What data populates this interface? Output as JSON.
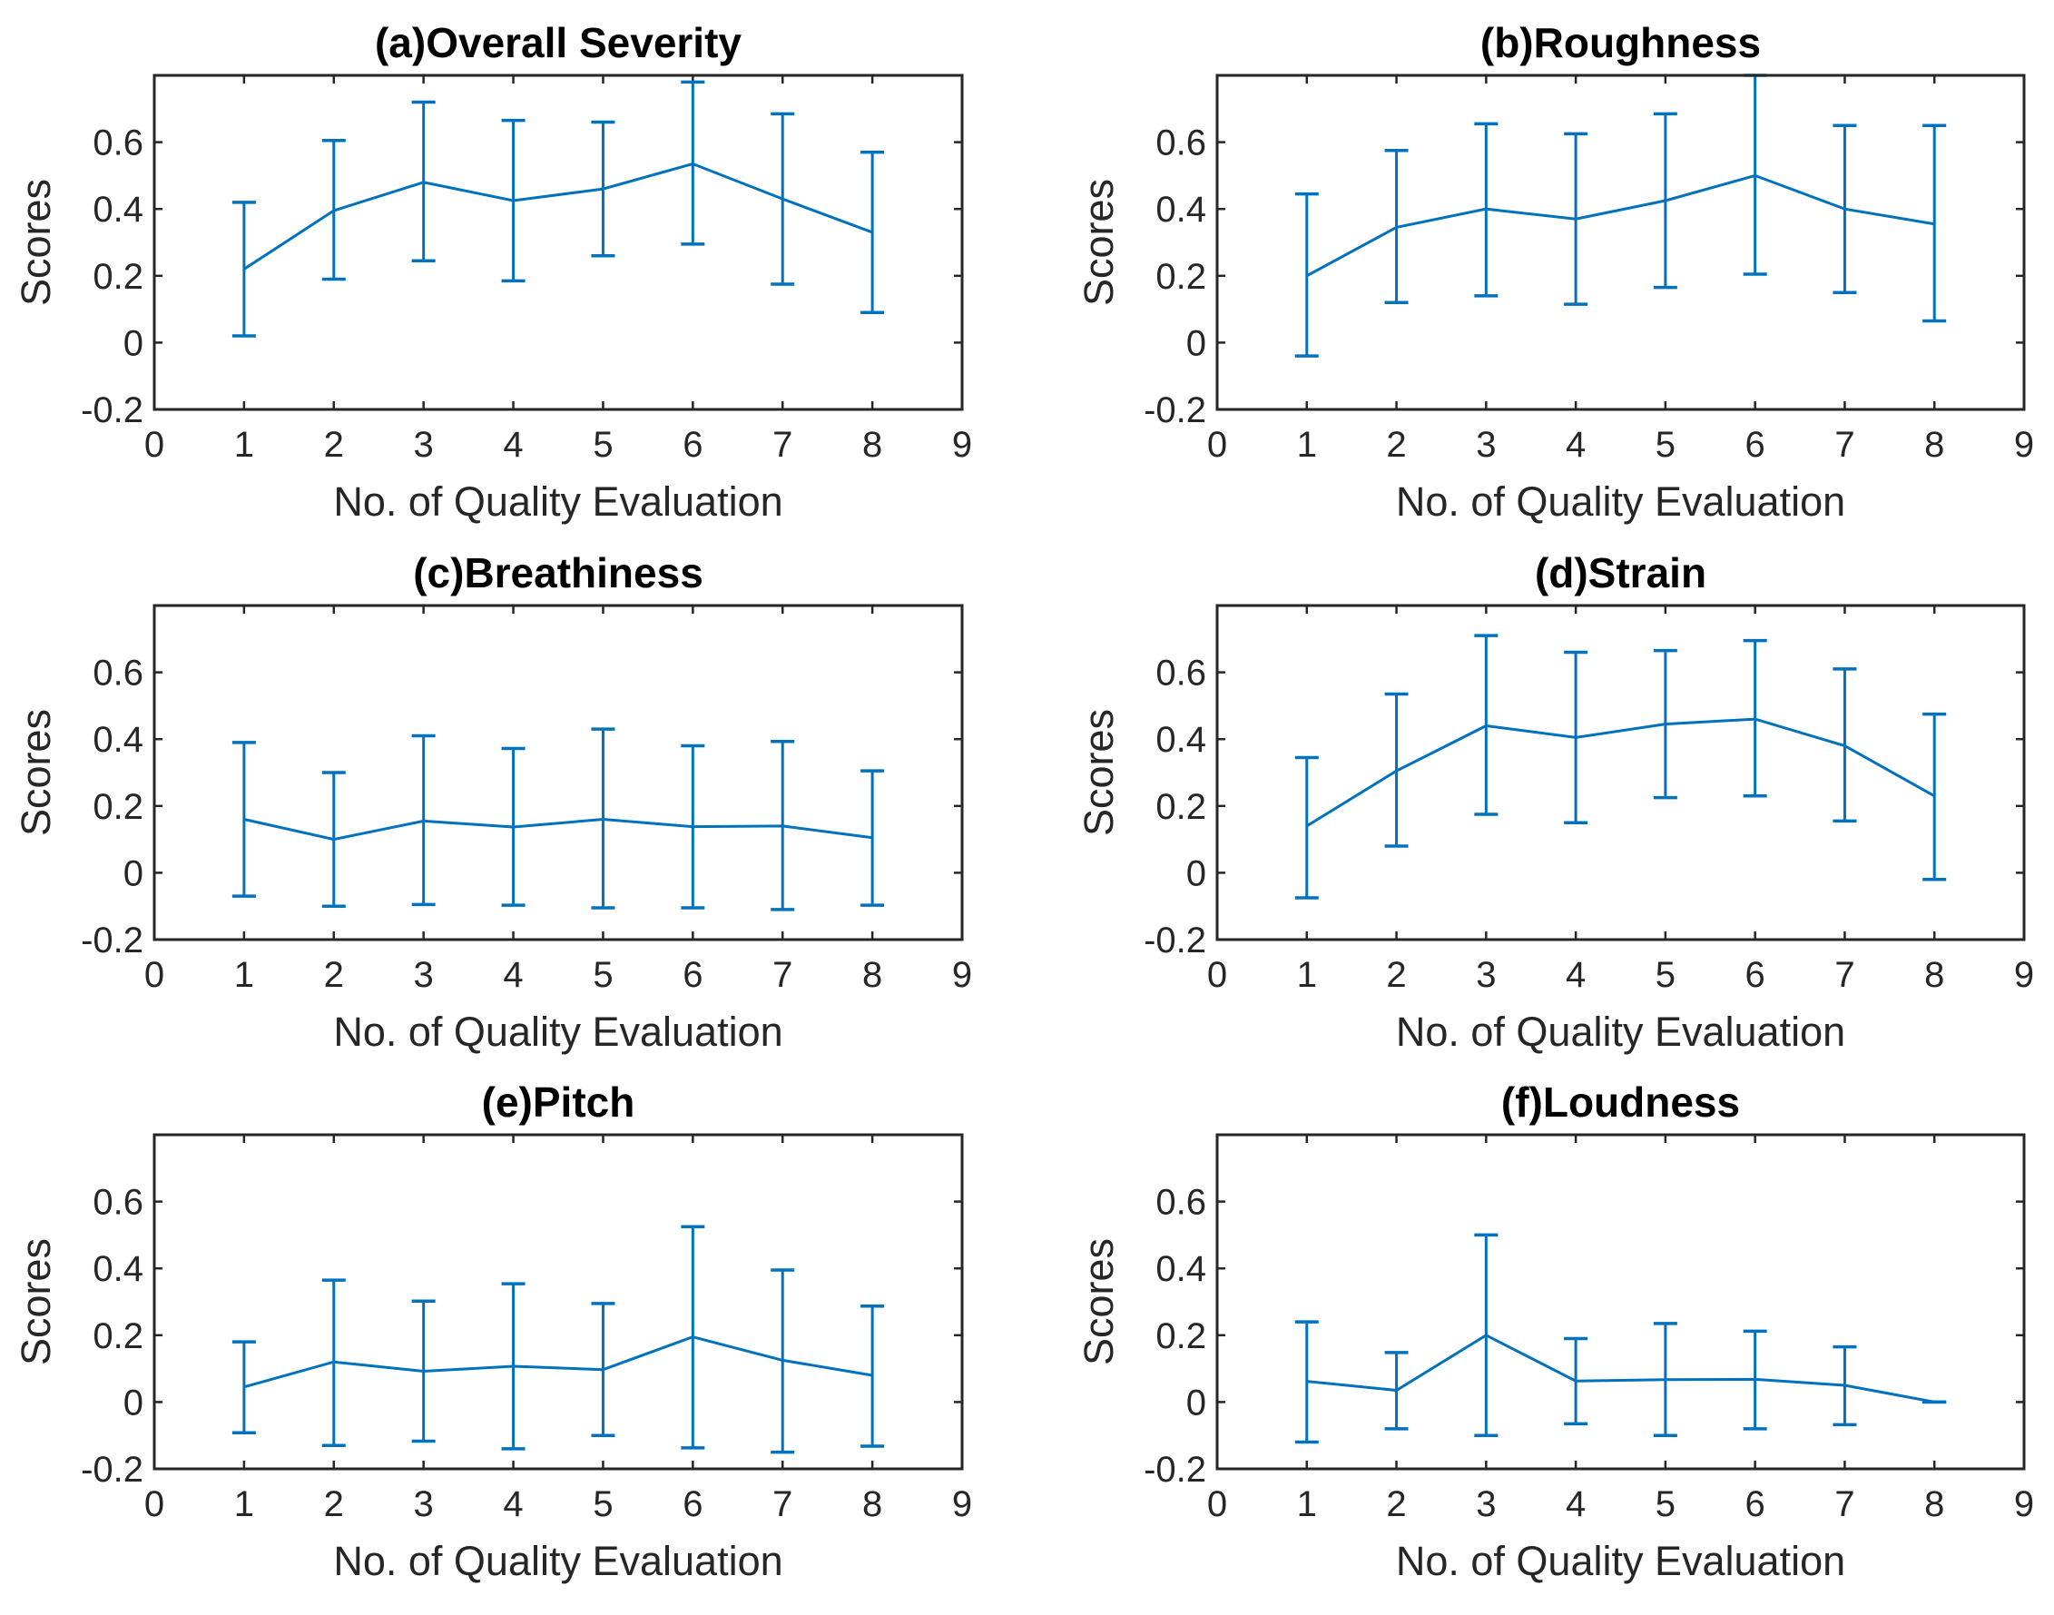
{
  "figure": {
    "series_color": "#0072BD",
    "axis_color": "#262626"
  },
  "chart_data": [
    {
      "type": "line",
      "title": "(a)Overall Severity",
      "xlabel": "No. of Quality Evaluation",
      "ylabel": "Scores",
      "xlim": [
        0,
        9
      ],
      "ylim": [
        -0.2,
        0.8
      ],
      "xticks": [
        "0",
        "1",
        "2",
        "3",
        "4",
        "5",
        "6",
        "7",
        "8",
        "9"
      ],
      "yticks": [
        "-0.2",
        "0",
        "0.2",
        "0.4",
        "0.6"
      ],
      "x": [
        1,
        2,
        3,
        4,
        5,
        6,
        7,
        8
      ],
      "values": [
        0.22,
        0.395,
        0.48,
        0.425,
        0.46,
        0.535,
        0.43,
        0.33
      ],
      "lower": [
        0.02,
        0.19,
        0.245,
        0.185,
        0.26,
        0.295,
        0.175,
        0.09
      ],
      "upper": [
        0.42,
        0.605,
        0.72,
        0.665,
        0.66,
        0.78,
        0.685,
        0.57
      ]
    },
    {
      "type": "line",
      "title": "(b)Roughness",
      "xlabel": "No. of Quality Evaluation",
      "ylabel": "Scores",
      "xlim": [
        0,
        9
      ],
      "ylim": [
        -0.2,
        0.8
      ],
      "xticks": [
        "0",
        "1",
        "2",
        "3",
        "4",
        "5",
        "6",
        "7",
        "8",
        "9"
      ],
      "yticks": [
        "-0.2",
        "0",
        "0.2",
        "0.4",
        "0.6"
      ],
      "x": [
        1,
        2,
        3,
        4,
        5,
        6,
        7,
        8
      ],
      "values": [
        0.2,
        0.345,
        0.4,
        0.37,
        0.425,
        0.5,
        0.4,
        0.355
      ],
      "lower": [
        -0.04,
        0.12,
        0.14,
        0.115,
        0.165,
        0.205,
        0.15,
        0.065
      ],
      "upper": [
        0.445,
        0.575,
        0.655,
        0.625,
        0.685,
        0.8,
        0.65,
        0.65
      ]
    },
    {
      "type": "line",
      "title": "(c)Breathiness",
      "xlabel": "No. of Quality Evaluation",
      "ylabel": "Scores",
      "xlim": [
        0,
        9
      ],
      "ylim": [
        -0.2,
        0.8
      ],
      "xticks": [
        "0",
        "1",
        "2",
        "3",
        "4",
        "5",
        "6",
        "7",
        "8",
        "9"
      ],
      "yticks": [
        "-0.2",
        "0",
        "0.2",
        "0.4",
        "0.6"
      ],
      "x": [
        1,
        2,
        3,
        4,
        5,
        6,
        7,
        8
      ],
      "values": [
        0.16,
        0.1,
        0.155,
        0.137,
        0.16,
        0.138,
        0.14,
        0.105
      ],
      "lower": [
        -0.07,
        -0.1,
        -0.095,
        -0.097,
        -0.105,
        -0.105,
        -0.11,
        -0.097
      ],
      "upper": [
        0.39,
        0.3,
        0.41,
        0.372,
        0.43,
        0.38,
        0.393,
        0.305
      ]
    },
    {
      "type": "line",
      "title": "(d)Strain",
      "xlabel": "No. of Quality Evaluation",
      "ylabel": "Scores",
      "xlim": [
        0,
        9
      ],
      "ylim": [
        -0.2,
        0.8
      ],
      "xticks": [
        "0",
        "1",
        "2",
        "3",
        "4",
        "5",
        "6",
        "7",
        "8",
        "9"
      ],
      "yticks": [
        "-0.2",
        "0",
        "0.2",
        "0.4",
        "0.6"
      ],
      "x": [
        1,
        2,
        3,
        4,
        5,
        6,
        7,
        8
      ],
      "values": [
        0.14,
        0.305,
        0.44,
        0.405,
        0.445,
        0.46,
        0.38,
        0.23
      ],
      "lower": [
        -0.075,
        0.08,
        0.175,
        0.15,
        0.225,
        0.23,
        0.155,
        -0.02
      ],
      "upper": [
        0.345,
        0.535,
        0.71,
        0.66,
        0.665,
        0.695,
        0.61,
        0.475
      ]
    },
    {
      "type": "line",
      "title": "(e)Pitch",
      "xlabel": "No. of Quality Evaluation",
      "ylabel": "Scores",
      "xlim": [
        0,
        9
      ],
      "ylim": [
        -0.2,
        0.8
      ],
      "xticks": [
        "0",
        "1",
        "2",
        "3",
        "4",
        "5",
        "6",
        "7",
        "8",
        "9"
      ],
      "yticks": [
        "-0.2",
        "0",
        "0.2",
        "0.4",
        "0.6"
      ],
      "x": [
        1,
        2,
        3,
        4,
        5,
        6,
        7,
        8
      ],
      "values": [
        0.045,
        0.12,
        0.092,
        0.107,
        0.097,
        0.195,
        0.125,
        0.08
      ],
      "lower": [
        -0.092,
        -0.13,
        -0.117,
        -0.14,
        -0.1,
        -0.137,
        -0.15,
        -0.132
      ],
      "upper": [
        0.18,
        0.365,
        0.302,
        0.354,
        0.295,
        0.525,
        0.395,
        0.287
      ]
    },
    {
      "type": "line",
      "title": "(f)Loudness",
      "xlabel": "No. of Quality Evaluation",
      "ylabel": "Scores",
      "xlim": [
        0,
        9
      ],
      "ylim": [
        -0.2,
        0.8
      ],
      "xticks": [
        "0",
        "1",
        "2",
        "3",
        "4",
        "5",
        "6",
        "7",
        "8",
        "9"
      ],
      "yticks": [
        "-0.2",
        "0",
        "0.2",
        "0.4",
        "0.6"
      ],
      "x": [
        1,
        2,
        3,
        4,
        5,
        6,
        7,
        8
      ],
      "values": [
        0.062,
        0.035,
        0.2,
        0.063,
        0.067,
        0.068,
        0.05,
        0.0
      ],
      "lower": [
        -0.12,
        -0.08,
        -0.1,
        -0.065,
        -0.1,
        -0.08,
        -0.068,
        0.0
      ],
      "upper": [
        0.24,
        0.148,
        0.5,
        0.19,
        0.235,
        0.212,
        0.165,
        0.0
      ]
    }
  ]
}
